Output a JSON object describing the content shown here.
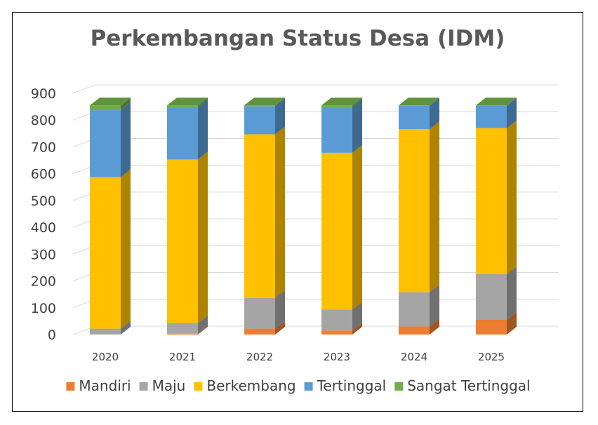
{
  "chart_data": {
    "type": "bar",
    "stacked": true,
    "three_d": true,
    "title": "Perkembangan Status Desa (IDM)",
    "categories": [
      "2020",
      "2021",
      "2022",
      "2023",
      "2024",
      "2025"
    ],
    "ylim": [
      0,
      900
    ],
    "yticks": [
      "0",
      "100",
      "200",
      "300",
      "400",
      "500",
      "600",
      "700",
      "800",
      "900"
    ],
    "grid": true,
    "legend_position": "bottom",
    "series": [
      {
        "name": "Mandiri",
        "color": "#ED7D31",
        "values": [
          0,
          3,
          22,
          15,
          30,
          55
        ]
      },
      {
        "name": "Maju",
        "color": "#A5A5A5",
        "values": [
          22,
          40,
          115,
          78,
          128,
          170
        ]
      },
      {
        "name": "Berkembang",
        "color": "#FFC000",
        "values": [
          565,
          610,
          610,
          585,
          608,
          545
        ]
      },
      {
        "name": "Tertinggal",
        "color": "#5B9BD5",
        "values": [
          250,
          195,
          105,
          170,
          88,
          83
        ]
      },
      {
        "name": "Sangat Tertinggal",
        "color": "#70AD47",
        "values": [
          18,
          7,
          3,
          7,
          1,
          2
        ]
      }
    ]
  }
}
